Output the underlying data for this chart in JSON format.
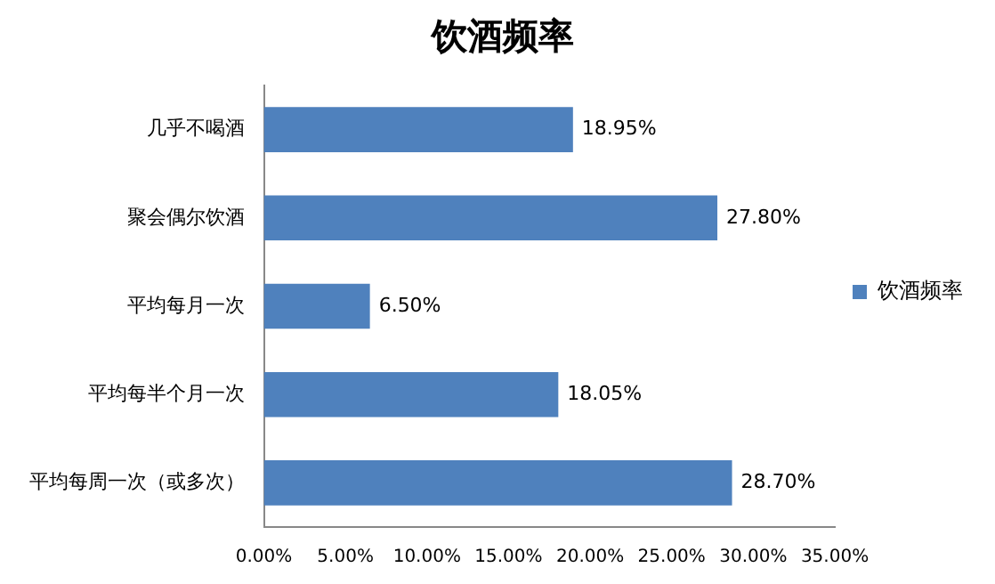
{
  "chart_data": {
    "type": "bar",
    "orientation": "horizontal",
    "title": "饮酒频率",
    "categories": [
      "几乎不喝酒",
      "聚会偶尔饮酒",
      "平均每月一次",
      "平均每半个月一次",
      "平均每周一次（或多次）"
    ],
    "series": [
      {
        "name": "饮酒频率",
        "color": "#4f81bd",
        "values": [
          18.95,
          27.8,
          6.5,
          18.05,
          28.7
        ],
        "value_labels": [
          "18.95%",
          "27.80%",
          "6.50%",
          "18.05%",
          "28.70%"
        ]
      }
    ],
    "xlim": [
      0,
      35
    ],
    "xticks": [
      {
        "value": 0,
        "label": "0.00%"
      },
      {
        "value": 5,
        "label": "5.00%"
      },
      {
        "value": 10,
        "label": "10.00%"
      },
      {
        "value": 15,
        "label": "15.00%"
      },
      {
        "value": 20,
        "label": "20.00%"
      },
      {
        "value": 25,
        "label": "25.00%"
      },
      {
        "value": 30,
        "label": "30.00%"
      },
      {
        "value": 35,
        "label": "35.00%"
      }
    ],
    "grid": false,
    "legend": "right"
  }
}
